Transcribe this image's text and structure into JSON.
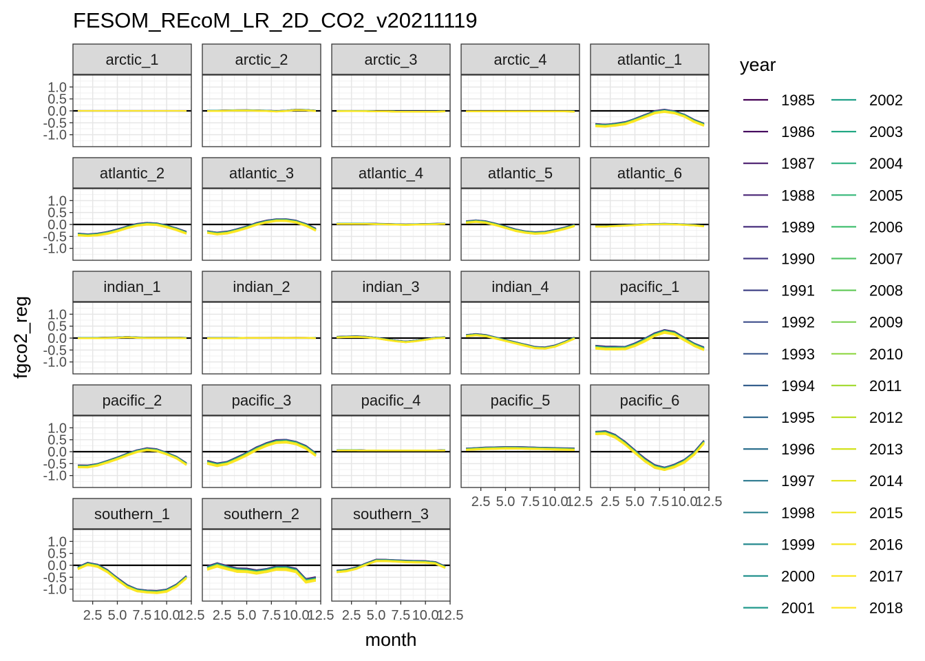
{
  "chart_data": {
    "type": "line",
    "title": "FESOM_REcoM_LR_2D_CO2_v20211119",
    "xlabel": "month",
    "ylabel": "fgco2_reg",
    "xlim": [
      0.5,
      12.5
    ],
    "ylim": [
      -1.5,
      1.5
    ],
    "x_ticks": [
      2.5,
      5.0,
      7.5,
      10.0,
      12.5
    ],
    "x_tick_labels": [
      "2.5",
      "5.0",
      "7.5",
      "10.0",
      "12.5"
    ],
    "y_ticks": [
      -1.0,
      -0.5,
      0.0,
      0.5,
      1.0
    ],
    "y_tick_labels": [
      "-1.0",
      "-0.5",
      "0.0",
      "0.5",
      "1.0"
    ],
    "zero_line": true,
    "grid": true,
    "legend": {
      "title": "year",
      "position": "right",
      "columns": 2,
      "items": [
        {
          "label": "1985",
          "color": "#440154"
        },
        {
          "label": "1986",
          "color": "#470D60"
        },
        {
          "label": "1987",
          "color": "#481A6C"
        },
        {
          "label": "1988",
          "color": "#482475"
        },
        {
          "label": "1989",
          "color": "#472F7D"
        },
        {
          "label": "1990",
          "color": "#443983"
        },
        {
          "label": "1991",
          "color": "#414487"
        },
        {
          "label": "1992",
          "color": "#3D4D8A"
        },
        {
          "label": "1993",
          "color": "#39568C"
        },
        {
          "label": "1994",
          "color": "#355F8D"
        },
        {
          "label": "1995",
          "color": "#31688E"
        },
        {
          "label": "1996",
          "color": "#2D708E"
        },
        {
          "label": "1997",
          "color": "#2A788E"
        },
        {
          "label": "1998",
          "color": "#27808E"
        },
        {
          "label": "1999",
          "color": "#23888E"
        },
        {
          "label": "2000",
          "color": "#21908C"
        },
        {
          "label": "2001",
          "color": "#1F988B"
        },
        {
          "label": "2002",
          "color": "#1FA088"
        },
        {
          "label": "2003",
          "color": "#22A884"
        },
        {
          "label": "2004",
          "color": "#2AB07F"
        },
        {
          "label": "2005",
          "color": "#35B779"
        },
        {
          "label": "2006",
          "color": "#43BF71"
        },
        {
          "label": "2007",
          "color": "#54C568"
        },
        {
          "label": "2008",
          "color": "#66CB5D"
        },
        {
          "label": "2009",
          "color": "#7AD151"
        },
        {
          "label": "2010",
          "color": "#8FD744"
        },
        {
          "label": "2011",
          "color": "#A5DB36"
        },
        {
          "label": "2012",
          "color": "#BBDF27"
        },
        {
          "label": "2013",
          "color": "#D2E21B"
        },
        {
          "label": "2014",
          "color": "#E4E419"
        },
        {
          "label": "2015",
          "color": "#EEE51C"
        },
        {
          "label": "2016",
          "color": "#F5E61E"
        },
        {
          "label": "2017",
          "color": "#F9E721"
        },
        {
          "label": "2018",
          "color": "#FDE725"
        }
      ]
    },
    "months": [
      1,
      2,
      3,
      4,
      5,
      6,
      7,
      8,
      9,
      10,
      11,
      12
    ],
    "panels": [
      {
        "label": "arctic_1",
        "base": [
          0,
          0,
          0,
          0,
          0,
          0,
          0,
          0,
          0,
          0,
          0,
          0
        ],
        "spread": 0.0
      },
      {
        "label": "arctic_2",
        "base": [
          0,
          0,
          0.01,
          0.02,
          0.02,
          0.01,
          0,
          -0.02,
          0,
          0.04,
          0.03,
          0
        ],
        "spread": 0.02
      },
      {
        "label": "arctic_3",
        "base": [
          -0.01,
          -0.01,
          -0.01,
          -0.01,
          -0.02,
          -0.02,
          -0.03,
          -0.03,
          -0.03,
          -0.03,
          -0.03,
          -0.02
        ],
        "spread": 0.01
      },
      {
        "label": "arctic_4",
        "base": [
          -0.02,
          -0.02,
          -0.02,
          -0.02,
          -0.02,
          -0.02,
          -0.02,
          -0.02,
          -0.02,
          -0.02,
          -0.02,
          -0.03
        ],
        "spread": 0.01
      },
      {
        "label": "atlantic_1",
        "base": [
          -0.6,
          -0.62,
          -0.58,
          -0.52,
          -0.38,
          -0.22,
          -0.06,
          0,
          -0.06,
          -0.2,
          -0.42,
          -0.58
        ],
        "spread": 0.08
      },
      {
        "label": "atlantic_2",
        "base": [
          -0.42,
          -0.45,
          -0.42,
          -0.35,
          -0.25,
          -0.12,
          -0.02,
          0.03,
          0.01,
          -0.08,
          -0.2,
          -0.35
        ],
        "spread": 0.07
      },
      {
        "label": "atlantic_3",
        "base": [
          -0.32,
          -0.38,
          -0.34,
          -0.24,
          -0.12,
          0.02,
          0.12,
          0.18,
          0.18,
          0.12,
          -0.02,
          -0.22
        ],
        "spread": 0.07
      },
      {
        "label": "atlantic_4",
        "base": [
          0.03,
          0.03,
          0.03,
          0.03,
          0.02,
          0.01,
          0,
          -0.01,
          0,
          0.01,
          0.02,
          0.03
        ],
        "spread": 0.02
      },
      {
        "label": "atlantic_5",
        "base": [
          0.1,
          0.14,
          0.1,
          0,
          -0.12,
          -0.24,
          -0.32,
          -0.36,
          -0.34,
          -0.26,
          -0.16,
          -0.04
        ],
        "spread": 0.06
      },
      {
        "label": "atlantic_6",
        "base": [
          -0.08,
          -0.08,
          -0.06,
          -0.04,
          -0.02,
          0,
          0.01,
          0.02,
          0.01,
          -0.01,
          -0.03,
          -0.07
        ],
        "spread": 0.02
      },
      {
        "label": "indian_1",
        "base": [
          0,
          0,
          0,
          0.01,
          0.02,
          0.04,
          0.02,
          0.01,
          0.01,
          0.01,
          0.01,
          0
        ],
        "spread": 0.02
      },
      {
        "label": "indian_2",
        "base": [
          0,
          0,
          0,
          0,
          0.01,
          0.01,
          0.01,
          0.01,
          0.01,
          0.01,
          0.01,
          0
        ],
        "spread": 0.01
      },
      {
        "label": "indian_3",
        "base": [
          0.04,
          0.05,
          0.06,
          0.04,
          0,
          -0.06,
          -0.12,
          -0.16,
          -0.12,
          -0.06,
          0,
          0.02
        ],
        "spread": 0.03
      },
      {
        "label": "indian_4",
        "base": [
          0.1,
          0.14,
          0.1,
          0,
          -0.1,
          -0.2,
          -0.3,
          -0.4,
          -0.42,
          -0.34,
          -0.18,
          0
        ],
        "spread": 0.05
      },
      {
        "label": "pacific_1",
        "base": [
          -0.38,
          -0.42,
          -0.42,
          -0.42,
          -0.28,
          -0.08,
          0.14,
          0.28,
          0.2,
          -0.04,
          -0.28,
          -0.45
        ],
        "spread": 0.1
      },
      {
        "label": "pacific_2",
        "base": [
          -0.62,
          -0.62,
          -0.55,
          -0.42,
          -0.28,
          -0.12,
          0.02,
          0.1,
          0.06,
          -0.08,
          -0.25,
          -0.52
        ],
        "spread": 0.07
      },
      {
        "label": "pacific_3",
        "base": [
          -0.45,
          -0.55,
          -0.48,
          -0.3,
          -0.1,
          0.12,
          0.3,
          0.42,
          0.44,
          0.36,
          0.18,
          -0.12
        ],
        "spread": 0.1
      },
      {
        "label": "pacific_4",
        "base": [
          0.06,
          0.06,
          0.06,
          0.05,
          0.05,
          0.05,
          0.05,
          0.05,
          0.05,
          0.05,
          0.05,
          0.06
        ],
        "spread": 0.01
      },
      {
        "label": "pacific_5",
        "base": [
          0.1,
          0.12,
          0.14,
          0.15,
          0.16,
          0.16,
          0.15,
          0.14,
          0.13,
          0.12,
          0.11,
          0.1
        ],
        "spread": 0.06
      },
      {
        "label": "pacific_6",
        "base": [
          0.78,
          0.8,
          0.65,
          0.35,
          0,
          -0.35,
          -0.62,
          -0.72,
          -0.6,
          -0.4,
          -0.08,
          0.4
        ],
        "spread": 0.1
      },
      {
        "label": "southern_1",
        "base": [
          -0.12,
          0.06,
          -0.02,
          -0.25,
          -0.58,
          -0.88,
          -1.05,
          -1.1,
          -1.12,
          -1.06,
          -0.85,
          -0.5
        ],
        "spread": 0.08
      },
      {
        "label": "southern_2",
        "base": [
          -0.12,
          0.02,
          -0.1,
          -0.2,
          -0.22,
          -0.28,
          -0.22,
          -0.12,
          -0.12,
          -0.22,
          -0.65,
          -0.58
        ],
        "spread": 0.12
      },
      {
        "label": "southern_3",
        "base": [
          -0.26,
          -0.22,
          -0.12,
          0.05,
          0.2,
          0.2,
          0.18,
          0.16,
          0.15,
          0.14,
          0.1,
          -0.08
        ],
        "spread": 0.06
      }
    ]
  }
}
